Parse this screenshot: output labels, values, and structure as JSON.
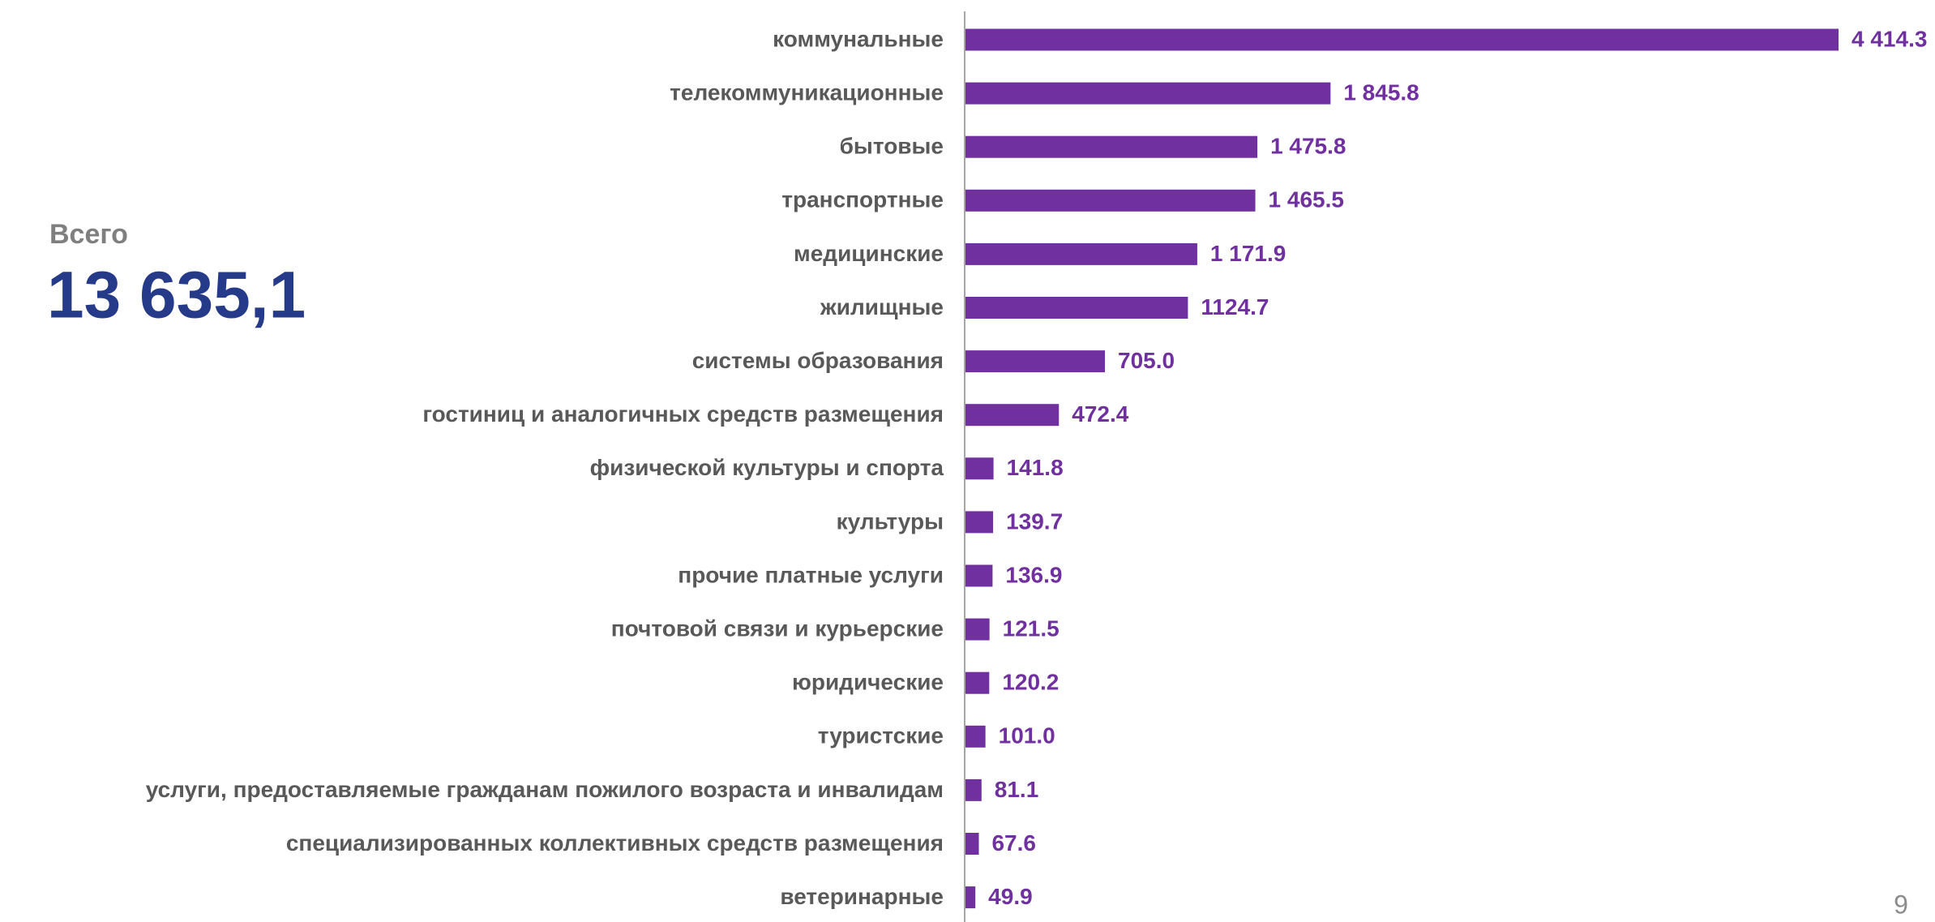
{
  "chart_data": {
    "type": "barh",
    "categories": [
      "коммунальные",
      "телекоммуникационные",
      "бытовые",
      "транспортные",
      "медицинские",
      "жилищные",
      "системы образования",
      "гостиниц и аналогичных средств размещения",
      "физической культуры и спорта",
      "культуры",
      "прочие платные услуги",
      "почтовой связи и курьерские",
      "юридические",
      "туристские",
      "услуги, предоставляемые гражданам пожилого возраста и инвалидам",
      "специализированных коллективных средств размещения",
      "ветеринарные"
    ],
    "values": [
      4414.3,
      1845.8,
      1475.8,
      1465.5,
      1171.9,
      1124.7,
      705.0,
      472.4,
      141.8,
      139.7,
      136.9,
      121.5,
      120.2,
      101.0,
      81.1,
      67.6,
      49.9
    ],
    "value_labels": [
      "4 414.3",
      "1 845.8",
      "1 475.8",
      "1 465.5",
      "1 171.9",
      "1124.7",
      "705.0",
      "472.4",
      "141.8",
      "139.7",
      "136.9",
      "121.5",
      "120.2",
      "101.0",
      "81.1",
      "67.6",
      "49.9"
    ],
    "color": "#7030a0",
    "total_caption": "Всего",
    "total": "13 635,1"
  },
  "page_number": "9"
}
